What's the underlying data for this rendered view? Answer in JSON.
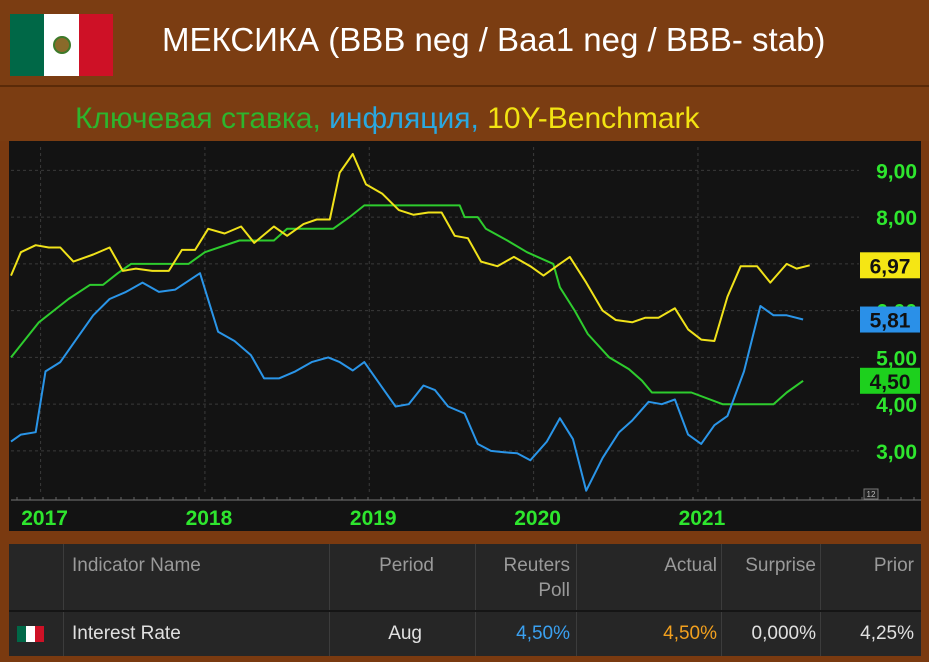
{
  "header": {
    "title": "МЕКСИКА (BBB neg / Baa1 neg / BBB- stab)",
    "flag_colors": [
      "#006847",
      "#ffffff",
      "#ce1126"
    ]
  },
  "subtitle": {
    "part1": "Ключевая ставка,",
    "part2": " инфляция,",
    "part3": " 10Y-Benchmark",
    "colors": [
      "#2db52d",
      "#2aa8e0",
      "#f2e312"
    ]
  },
  "chart_data": {
    "type": "line",
    "x_ticks": [
      "2017",
      "2018",
      "2019",
      "2020",
      "2021"
    ],
    "y_ticks": [
      "9,00",
      "8,00",
      "7,00",
      "6,00",
      "5,00",
      "4,00",
      "3,00"
    ],
    "ylim": [
      2.1,
      9.5
    ],
    "xlim": [
      2016.82,
      2021.98
    ],
    "legend_values": [
      {
        "label": "6,97",
        "color": "#f5e614"
      },
      {
        "label": "5,81",
        "color": "#2a90e8"
      },
      {
        "label": "4,50",
        "color": "#1dd01d"
      }
    ],
    "corner_label": "12",
    "series": [
      {
        "color": "#2ecc2e",
        "points": [
          [
            2016.82,
            5.0
          ],
          [
            2016.99,
            5.75
          ],
          [
            2017.17,
            6.25
          ],
          [
            2017.3,
            6.55
          ],
          [
            2017.38,
            6.55
          ],
          [
            2017.47,
            6.8
          ],
          [
            2017.55,
            7.0
          ],
          [
            2017.9,
            7.0
          ],
          [
            2018.0,
            7.25
          ],
          [
            2018.21,
            7.5
          ],
          [
            2018.42,
            7.5
          ],
          [
            2018.5,
            7.75
          ],
          [
            2018.78,
            7.75
          ],
          [
            2018.88,
            8.0
          ],
          [
            2018.97,
            8.25
          ],
          [
            2019.55,
            8.25
          ],
          [
            2019.58,
            8.0
          ],
          [
            2019.66,
            8.0
          ],
          [
            2019.71,
            7.75
          ],
          [
            2019.84,
            7.5
          ],
          [
            2019.96,
            7.25
          ],
          [
            2020.12,
            7.0
          ],
          [
            2020.16,
            6.5
          ],
          [
            2020.25,
            6.0
          ],
          [
            2020.33,
            5.5
          ],
          [
            2020.46,
            5.0
          ],
          [
            2020.58,
            4.75
          ],
          [
            2020.66,
            4.5
          ],
          [
            2020.72,
            4.25
          ],
          [
            2020.96,
            4.25
          ],
          [
            2021.15,
            4.0
          ],
          [
            2021.46,
            4.0
          ],
          [
            2021.54,
            4.25
          ],
          [
            2021.64,
            4.5
          ]
        ]
      },
      {
        "color": "#2a95e8",
        "points": [
          [
            2016.82,
            3.2
          ],
          [
            2016.88,
            3.35
          ],
          [
            2016.97,
            3.4
          ],
          [
            2017.03,
            4.7
          ],
          [
            2017.12,
            4.9
          ],
          [
            2017.22,
            5.4
          ],
          [
            2017.32,
            5.9
          ],
          [
            2017.42,
            6.25
          ],
          [
            2017.52,
            6.4
          ],
          [
            2017.62,
            6.6
          ],
          [
            2017.72,
            6.4
          ],
          [
            2017.82,
            6.45
          ],
          [
            2017.97,
            6.8
          ],
          [
            2018.08,
            5.55
          ],
          [
            2018.18,
            5.35
          ],
          [
            2018.28,
            5.05
          ],
          [
            2018.36,
            4.55
          ],
          [
            2018.45,
            4.55
          ],
          [
            2018.55,
            4.7
          ],
          [
            2018.65,
            4.9
          ],
          [
            2018.75,
            5.0
          ],
          [
            2018.82,
            4.9
          ],
          [
            2018.9,
            4.72
          ],
          [
            2018.97,
            4.9
          ],
          [
            2019.08,
            4.35
          ],
          [
            2019.16,
            3.95
          ],
          [
            2019.24,
            4.0
          ],
          [
            2019.33,
            4.4
          ],
          [
            2019.4,
            4.3
          ],
          [
            2019.48,
            3.95
          ],
          [
            2019.58,
            3.8
          ],
          [
            2019.66,
            3.15
          ],
          [
            2019.74,
            3.0
          ],
          [
            2019.82,
            2.97
          ],
          [
            2019.9,
            2.95
          ],
          [
            2019.98,
            2.8
          ],
          [
            2020.08,
            3.2
          ],
          [
            2020.16,
            3.7
          ],
          [
            2020.24,
            3.25
          ],
          [
            2020.32,
            2.15
          ],
          [
            2020.42,
            2.85
          ],
          [
            2020.52,
            3.4
          ],
          [
            2020.6,
            3.65
          ],
          [
            2020.7,
            4.05
          ],
          [
            2020.78,
            4.0
          ],
          [
            2020.86,
            4.1
          ],
          [
            2020.94,
            3.35
          ],
          [
            2021.02,
            3.15
          ],
          [
            2021.1,
            3.55
          ],
          [
            2021.18,
            3.75
          ],
          [
            2021.28,
            4.7
          ],
          [
            2021.38,
            6.1
          ],
          [
            2021.46,
            5.9
          ],
          [
            2021.54,
            5.9
          ],
          [
            2021.64,
            5.81
          ]
        ]
      },
      {
        "color": "#f0e21a",
        "points": [
          [
            2016.82,
            6.75
          ],
          [
            2016.88,
            7.25
          ],
          [
            2016.97,
            7.4
          ],
          [
            2017.05,
            7.35
          ],
          [
            2017.12,
            7.35
          ],
          [
            2017.2,
            7.05
          ],
          [
            2017.32,
            7.2
          ],
          [
            2017.42,
            7.35
          ],
          [
            2017.5,
            6.85
          ],
          [
            2017.58,
            6.9
          ],
          [
            2017.68,
            6.85
          ],
          [
            2017.78,
            6.85
          ],
          [
            2017.86,
            7.3
          ],
          [
            2017.94,
            7.3
          ],
          [
            2018.02,
            7.75
          ],
          [
            2018.12,
            7.65
          ],
          [
            2018.22,
            7.8
          ],
          [
            2018.3,
            7.45
          ],
          [
            2018.42,
            7.8
          ],
          [
            2018.5,
            7.6
          ],
          [
            2018.6,
            7.85
          ],
          [
            2018.68,
            7.95
          ],
          [
            2018.76,
            7.95
          ],
          [
            2018.82,
            8.95
          ],
          [
            2018.9,
            9.35
          ],
          [
            2018.98,
            8.7
          ],
          [
            2019.08,
            8.5
          ],
          [
            2019.18,
            8.15
          ],
          [
            2019.27,
            8.05
          ],
          [
            2019.36,
            8.1
          ],
          [
            2019.44,
            8.1
          ],
          [
            2019.52,
            7.6
          ],
          [
            2019.6,
            7.55
          ],
          [
            2019.68,
            7.05
          ],
          [
            2019.78,
            6.95
          ],
          [
            2019.88,
            7.15
          ],
          [
            2019.98,
            6.95
          ],
          [
            2020.06,
            6.75
          ],
          [
            2020.14,
            6.95
          ],
          [
            2020.22,
            7.15
          ],
          [
            2020.32,
            6.6
          ],
          [
            2020.42,
            6.0
          ],
          [
            2020.5,
            5.8
          ],
          [
            2020.6,
            5.75
          ],
          [
            2020.68,
            5.85
          ],
          [
            2020.76,
            5.85
          ],
          [
            2020.86,
            6.05
          ],
          [
            2020.94,
            5.6
          ],
          [
            2021.02,
            5.38
          ],
          [
            2021.1,
            5.35
          ],
          [
            2021.18,
            6.3
          ],
          [
            2021.26,
            6.95
          ],
          [
            2021.36,
            6.95
          ],
          [
            2021.44,
            6.6
          ],
          [
            2021.54,
            7.0
          ],
          [
            2021.6,
            6.9
          ],
          [
            2021.68,
            6.97
          ]
        ]
      }
    ]
  },
  "table": {
    "headers": {
      "indicator": "Indicator Name",
      "period": "Period",
      "reuters_line1": "Reuters",
      "reuters_line2": "Poll",
      "actual": "Actual",
      "surprise": "Surprise",
      "prior": "Prior"
    },
    "row": {
      "indicator": "Interest Rate",
      "period": "Aug",
      "reuters": "4,50%",
      "actual": "4,50%",
      "surprise": "0,000%",
      "prior": "4,25%"
    },
    "colors": {
      "reuters": "#3aa0f0",
      "actual": "#f2a01e"
    }
  }
}
